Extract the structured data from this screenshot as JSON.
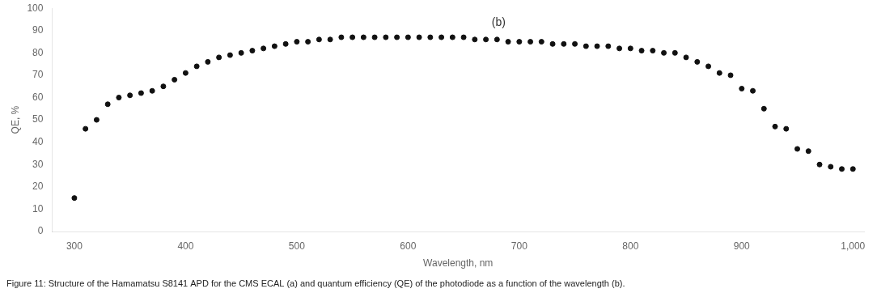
{
  "chart_data": {
    "type": "scatter",
    "x": [
      300,
      310,
      320,
      330,
      340,
      350,
      360,
      370,
      380,
      390,
      400,
      410,
      420,
      430,
      440,
      450,
      460,
      470,
      480,
      490,
      500,
      510,
      520,
      530,
      540,
      550,
      560,
      570,
      580,
      590,
      600,
      610,
      620,
      630,
      640,
      650,
      660,
      670,
      680,
      690,
      700,
      710,
      720,
      730,
      740,
      750,
      760,
      770,
      780,
      790,
      800,
      810,
      820,
      830,
      840,
      850,
      860,
      870,
      880,
      890,
      900,
      910,
      920,
      930,
      940,
      950,
      960,
      970,
      980,
      990,
      1000
    ],
    "values": [
      15,
      46,
      50,
      57,
      60,
      61,
      62,
      63,
      65,
      68,
      71,
      74,
      76,
      78,
      79,
      80,
      81,
      82,
      83,
      84,
      85,
      85,
      86,
      86,
      87,
      87,
      87,
      87,
      87,
      87,
      87,
      87,
      87,
      87,
      87,
      87,
      86,
      86,
      86,
      85,
      85,
      85,
      85,
      84,
      84,
      84,
      83,
      83,
      83,
      82,
      82,
      81,
      81,
      80,
      80,
      78,
      76,
      74,
      71,
      70,
      64,
      63,
      55,
      47,
      46,
      37,
      36,
      30,
      29,
      28,
      28
    ],
    "color": "#111111",
    "marker": "circle",
    "xlabel": "Wavelength, nm",
    "ylabel": "QE, %",
    "xlim": [
      280,
      1010
    ],
    "xticks": [
      300,
      400,
      500,
      600,
      700,
      800,
      900,
      1000
    ],
    "ylim": [
      0,
      100
    ],
    "yticks": [
      0,
      10,
      20,
      30,
      40,
      50,
      60,
      70,
      80,
      90,
      100
    ],
    "annotations": [
      {
        "text": "(b)"
      }
    ],
    "subtitle": "Figure 11: Structure of the Hamamatsu S8141 APD for the CMS ECAL (a) and quantum efficiency (QE) of the photodiode as a function of the wavelength (b).",
    "grid": false
  }
}
